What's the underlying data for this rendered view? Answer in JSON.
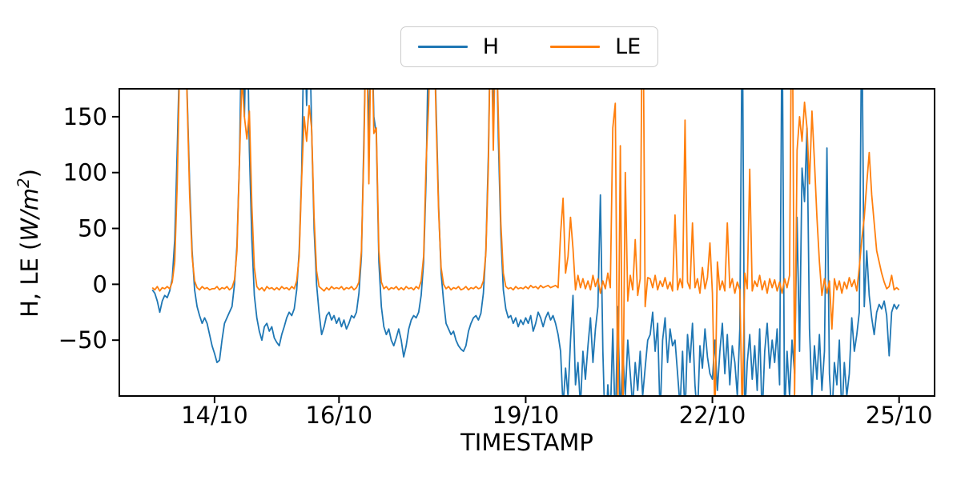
{
  "figure": {
    "xlabel": "TIMESTAMP",
    "ylabel": {
      "prefix": "H, LE (",
      "math": "W/m",
      "sup": "2",
      "suffix": ")"
    },
    "background": "#ffffff",
    "legend": {
      "entries": [
        {
          "label": "H",
          "color": "#1f77b4"
        },
        {
          "label": "LE",
          "color": "#ff7f0e"
        }
      ]
    }
  },
  "chart_data": {
    "type": "line",
    "title": "",
    "xlabel": "TIMESTAMP",
    "ylabel": "H, LE (W/m^2)",
    "grid": false,
    "legend_position": "top center, outside axes",
    "xlim": [
      12.47,
      25.57
    ],
    "ylim": [
      -100,
      175
    ],
    "x_unit": "day of October (fractional days; ticks are DD/10 dates)",
    "x_ticks": [
      {
        "value": 14,
        "label": "14/10"
      },
      {
        "value": 16,
        "label": "16/10"
      },
      {
        "value": 19,
        "label": "19/10"
      },
      {
        "value": 22,
        "label": "22/10"
      },
      {
        "value": 25,
        "label": "25/10"
      }
    ],
    "y_ticks": [
      {
        "value": -50,
        "label": "−50"
      },
      {
        "value": 0,
        "label": "0"
      },
      {
        "value": 50,
        "label": "50"
      },
      {
        "value": 100,
        "label": "100"
      },
      {
        "value": 150,
        "label": "150"
      }
    ],
    "note": "Half-hourly-style flux series, estimated from pixels. x starts at Oct 13.00, step 0.04 day. Values beyond ylim [-100,175] are clipped at the axes edge in the rendering (peaks/dips ran off-scale in the original).",
    "x_start": 13.0,
    "x_step": 0.04,
    "series": [
      {
        "name": "H",
        "color": "#1f77b4",
        "values": [
          -5,
          -8,
          -15,
          -25,
          -15,
          -10,
          -12,
          -6,
          5,
          40,
          120,
          210,
          260,
          255,
          170,
          90,
          30,
          -5,
          -20,
          -28,
          -35,
          -30,
          -35,
          -45,
          -55,
          -62,
          -70,
          -68,
          -50,
          -35,
          -30,
          -25,
          -20,
          0,
          35,
          110,
          250,
          150,
          260,
          120,
          40,
          -10,
          -30,
          -42,
          -50,
          -38,
          -35,
          -42,
          -38,
          -48,
          -52,
          -55,
          -45,
          -38,
          -30,
          -25,
          -28,
          -22,
          -5,
          30,
          100,
          240,
          160,
          250,
          140,
          50,
          0,
          -25,
          -45,
          -38,
          -28,
          -25,
          -32,
          -28,
          -35,
          -30,
          -38,
          -32,
          -40,
          -35,
          -28,
          -30,
          -25,
          -8,
          25,
          130,
          245,
          130,
          250,
          150,
          135,
          20,
          -20,
          -38,
          -45,
          -40,
          -50,
          -55,
          -48,
          -40,
          -50,
          -65,
          -55,
          -40,
          -32,
          -28,
          -30,
          -25,
          -10,
          20,
          95,
          230,
          260,
          250,
          160,
          70,
          10,
          -15,
          -35,
          -40,
          -45,
          -42,
          -50,
          -55,
          -58,
          -60,
          -55,
          -42,
          -35,
          -30,
          -28,
          -32,
          -26,
          -8,
          30,
          115,
          250,
          140,
          255,
          130,
          45,
          -5,
          -22,
          -30,
          -28,
          -35,
          -30,
          -38,
          -32,
          -36,
          -30,
          -35,
          -28,
          -42,
          -35,
          -25,
          -30,
          -38,
          -30,
          -25,
          -32,
          -28,
          -35,
          -45,
          -60,
          -110,
          -75,
          -100,
          -50,
          -10,
          -90,
          -70,
          -110,
          -60,
          -85,
          -55,
          -30,
          -70,
          -40,
          -20,
          80,
          -60,
          -140,
          -90,
          -120,
          -40,
          -130,
          -20,
          -120,
          -60,
          -100,
          -50,
          -80,
          -110,
          -70,
          -95,
          -60,
          -100,
          -75,
          -50,
          -45,
          -25,
          -60,
          -35,
          -120,
          -50,
          -30,
          -70,
          -40,
          -55,
          -50,
          -80,
          -110,
          -60,
          -120,
          -45,
          -70,
          -35,
          -90,
          -120,
          -55,
          -75,
          -40,
          -65,
          -80,
          -85,
          -50,
          -95,
          -60,
          -35,
          -80,
          -45,
          -90,
          -55,
          -70,
          -100,
          -40,
          250,
          -120,
          -70,
          -45,
          -85,
          -55,
          -95,
          -40,
          -120,
          -60,
          -35,
          -75,
          -50,
          -70,
          -40,
          -90,
          250,
          -120,
          -60,
          -100,
          -50,
          -80,
          60,
          -60,
          104,
          74,
          140,
          -40,
          -100,
          -55,
          -85,
          -45,
          -95,
          -60,
          122,
          -80,
          -120,
          -70,
          -90,
          -50,
          -120,
          -70,
          -100,
          -80,
          -30,
          -60,
          -45,
          -25,
          250,
          -20,
          30,
          -10,
          -30,
          -45,
          -25,
          -18,
          -22,
          -15,
          -28,
          -64,
          -25,
          -18,
          -22,
          -18
        ]
      },
      {
        "name": "LE",
        "color": "#ff7f0e",
        "values": [
          -3,
          -5,
          -2,
          -6,
          -3,
          -4,
          -2,
          -4,
          2,
          20,
          90,
          200,
          250,
          245,
          165,
          80,
          25,
          3,
          -3,
          -5,
          -2,
          -4,
          -3,
          -5,
          -4,
          -4,
          -2,
          -5,
          -3,
          -4,
          -2,
          -5,
          -3,
          4,
          30,
          110,
          185,
          150,
          130,
          155,
          70,
          15,
          -2,
          -5,
          -3,
          -6,
          -2,
          -4,
          -3,
          -5,
          -3,
          -5,
          -2,
          -4,
          -3,
          -5,
          -2,
          -4,
          3,
          25,
          95,
          150,
          128,
          160,
          140,
          60,
          12,
          -2,
          -4,
          -6,
          -3,
          -5,
          -2,
          -4,
          -3,
          -4,
          -2,
          -5,
          -3,
          -4,
          -2,
          -5,
          -3,
          2,
          30,
          120,
          250,
          90,
          245,
          135,
          140,
          30,
          2,
          -4,
          -2,
          -5,
          -3,
          -4,
          -2,
          -5,
          -3,
          -5,
          -2,
          -4,
          -3,
          -5,
          -2,
          -4,
          3,
          25,
          110,
          160,
          250,
          245,
          150,
          65,
          15,
          0,
          -4,
          -2,
          -5,
          -3,
          -4,
          -2,
          -5,
          -4,
          -2,
          -5,
          -3,
          -4,
          -2,
          -4,
          -3,
          3,
          28,
          105,
          250,
          120,
          240,
          150,
          55,
          10,
          -2,
          -4,
          -3,
          -5,
          -2,
          -4,
          -3,
          -4,
          -2,
          -4,
          -1,
          -3,
          -2,
          -4,
          -1,
          -3,
          -2,
          -1,
          -3,
          -2,
          -1,
          -3,
          45,
          77,
          10,
          25,
          60,
          32,
          -5,
          8,
          -3,
          5,
          -4,
          3,
          -5,
          8,
          -2,
          5,
          -8,
          3,
          -4,
          10,
          -3,
          140,
          162,
          -120,
          124,
          -130,
          100,
          -15,
          8,
          -5,
          40,
          -10,
          5,
          300,
          -20,
          6,
          5,
          -3,
          8,
          -5,
          3,
          -2,
          6,
          -4,
          2,
          -6,
          62,
          -5,
          5,
          -3,
          147,
          2,
          -4,
          55,
          -3,
          5,
          -8,
          15,
          -4,
          6,
          37,
          -8,
          -120,
          20,
          -5,
          3,
          -6,
          55,
          -3,
          5,
          -8,
          2,
          -5,
          -120,
          10,
          -4,
          103,
          -6,
          3,
          -2,
          8,
          -5,
          3,
          -8,
          5,
          -3,
          4,
          -6,
          2,
          -8,
          5,
          -3,
          8,
          300,
          -100,
          120,
          150,
          128,
          163,
          140,
          90,
          155,
          110,
          60,
          20,
          -10,
          5,
          -8,
          3,
          -40,
          5,
          -5,
          3,
          -8,
          2,
          -4,
          6,
          -2,
          4,
          -6,
          15,
          40,
          60,
          90,
          118,
          80,
          55,
          30,
          20,
          10,
          2,
          -4,
          -2,
          8,
          -5,
          -3,
          -5
        ]
      }
    ]
  }
}
